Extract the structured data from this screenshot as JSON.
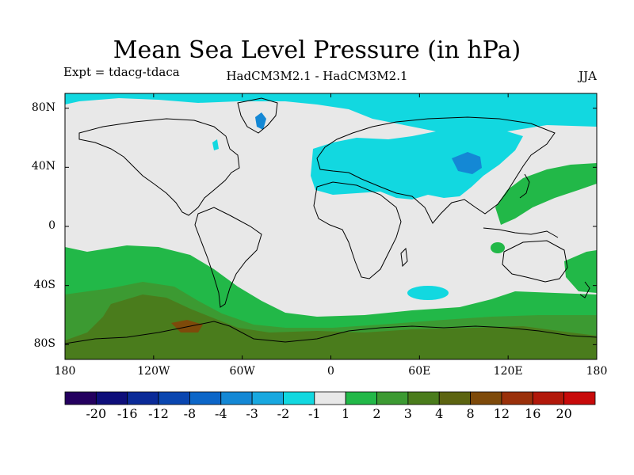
{
  "header": {
    "title": "Mean Sea Level Pressure (in hPa)",
    "expt": "Expt = tdacg-tdaca",
    "model": "HadCM3M2.1 - HadCM3M2.1",
    "season": "JJA"
  },
  "axes": {
    "y_ticks": [
      {
        "label": "80N",
        "lat": 80
      },
      {
        "label": "40N",
        "lat": 40
      },
      {
        "label": "0",
        "lat": 0
      },
      {
        "label": "40S",
        "lat": -40
      },
      {
        "label": "80S",
        "lat": -80
      }
    ],
    "x_ticks": [
      {
        "label": "180",
        "lon": -180
      },
      {
        "label": "120W",
        "lon": -120
      },
      {
        "label": "60W",
        "lon": -60
      },
      {
        "label": "0",
        "lon": 0
      },
      {
        "label": "60E",
        "lon": 60
      },
      {
        "label": "120E",
        "lon": 120
      },
      {
        "label": "180",
        "lon": 180
      }
    ]
  },
  "colorbar": {
    "colors": [
      "#24005f",
      "#0e0e7a",
      "#0a2a98",
      "#0a46b0",
      "#0c66c8",
      "#1488d5",
      "#18a8e0",
      "#12d8e0",
      "#e8e8e8",
      "#22b848",
      "#3c9a32",
      "#4a7c1c",
      "#5c6410",
      "#7e4a0a",
      "#9a300a",
      "#b2180a",
      "#c80a0a"
    ],
    "labels": [
      "-20",
      "-16",
      "-12",
      "-8",
      "-4",
      "-3",
      "-2",
      "-1",
      "1",
      "2",
      "3",
      "4",
      "8",
      "12",
      "16",
      "20"
    ]
  },
  "map": {
    "lon_range": [
      -180,
      180
    ],
    "lat_range": [
      -90,
      90
    ],
    "colors": {
      "neutral": "#e8e8e8",
      "cyan": "#12d8e0",
      "blue": "#1488d5",
      "green": "#22b848",
      "dgreen": "#3c9a32",
      "olive": "#4a7c1c",
      "brown": "#7e4a0a"
    }
  }
}
